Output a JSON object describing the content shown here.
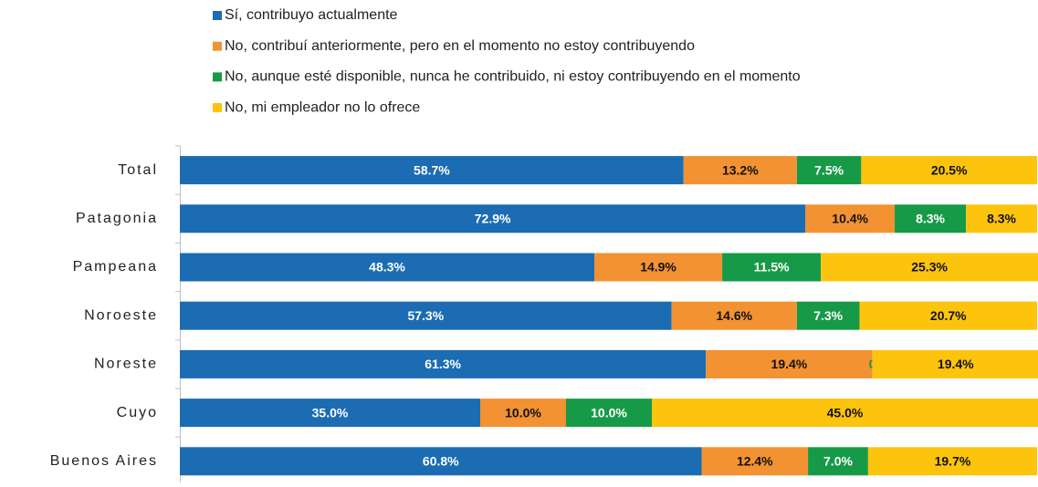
{
  "chart_data": {
    "type": "stacked_bar_horizontal",
    "categories": [
      "Total",
      "Patagonia",
      "Pampeana",
      "Noroeste",
      "Noreste",
      "Cuyo",
      "Buenos Aires"
    ],
    "series": [
      {
        "name": "Sí, contribuyo actualmente",
        "color": "#1b6cb3",
        "values": [
          58.7,
          72.9,
          48.3,
          57.3,
          61.3,
          35.0,
          60.8
        ],
        "value_labels": [
          "58.7%",
          "72.9%",
          "48.3%",
          "57.3%",
          "61.3%",
          "35.0%",
          "60.8%"
        ]
      },
      {
        "name": "No, contribuí anteriormente, pero en el momento no estoy contribuyendo",
        "color": "#f39232",
        "values": [
          13.2,
          10.4,
          14.9,
          14.6,
          19.4,
          10.0,
          12.4
        ],
        "value_labels": [
          "13.2%",
          "10.4%",
          "14.9%",
          "14.6%",
          "19.4%",
          "10.0%",
          "12.4%"
        ]
      },
      {
        "name": "No, aunque esté disponible, nunca he contribuido, ni estoy contribuyendo en el momento",
        "color": "#179a47",
        "values": [
          7.5,
          8.3,
          11.5,
          7.3,
          0,
          10.0,
          7.0
        ],
        "value_labels": [
          "7.5%",
          "8.3%",
          "11.5%",
          "7.3%",
          "0",
          "10.0%",
          "7.0%"
        ]
      },
      {
        "name": "No, mi empleador no lo ofrece",
        "color": "#fcc40c",
        "values": [
          20.5,
          8.3,
          25.3,
          20.7,
          19.4,
          45.0,
          19.7
        ],
        "value_labels": [
          "20.5%",
          "8.3%",
          "25.3%",
          "20.7%",
          "19.4%",
          "45.0%",
          "19.7%"
        ]
      }
    ],
    "xlim": [
      0,
      100
    ]
  }
}
